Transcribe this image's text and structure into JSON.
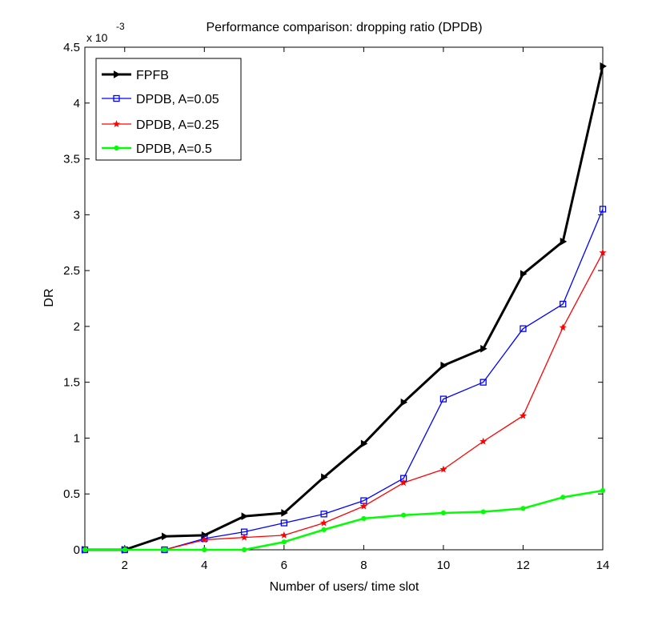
{
  "chart_data": {
    "type": "line",
    "title": "Performance comparison: dropping ratio (DPDB)",
    "xlabel": "Number of users/ time slot",
    "ylabel": "DR",
    "exponent_base": "x 10",
    "exponent_power": "-3",
    "xlim": [
      1,
      14
    ],
    "ylim": [
      0,
      4.5
    ],
    "xticks": [
      2,
      4,
      6,
      8,
      10,
      12,
      14
    ],
    "yticks": [
      0,
      0.5,
      1,
      1.5,
      2,
      2.5,
      3,
      3.5,
      4,
      4.5
    ],
    "grid": false,
    "legend_position": "top-left",
    "x": [
      1,
      2,
      3,
      4,
      5,
      6,
      7,
      8,
      9,
      10,
      11,
      12,
      13,
      14
    ],
    "series": [
      {
        "name": "FPFB",
        "color": "#000000",
        "marker": "triangle-right",
        "values": [
          0,
          0,
          0.12,
          0.13,
          0.3,
          0.33,
          0.65,
          0.95,
          1.32,
          1.65,
          1.8,
          2.47,
          2.76,
          4.33
        ]
      },
      {
        "name": "DPDB, A=0.05",
        "color": "#0000ff",
        "marker": "square",
        "values": [
          0,
          0,
          0,
          0.1,
          0.16,
          0.24,
          0.32,
          0.44,
          0.64,
          1.35,
          1.5,
          1.98,
          2.2,
          3.05
        ]
      },
      {
        "name": "DPDB, A=0.25",
        "color": "#ff0000",
        "marker": "star",
        "values": [
          0,
          0,
          0,
          0.09,
          0.11,
          0.13,
          0.24,
          0.39,
          0.6,
          0.72,
          0.97,
          1.2,
          1.99,
          2.66
        ]
      },
      {
        "name": "DPDB, A=0.5",
        "color": "#00ff00",
        "marker": "circle",
        "values": [
          0,
          0,
          0,
          0,
          0,
          0.07,
          0.18,
          0.28,
          0.31,
          0.33,
          0.34,
          0.37,
          0.47,
          0.53
        ]
      }
    ]
  }
}
